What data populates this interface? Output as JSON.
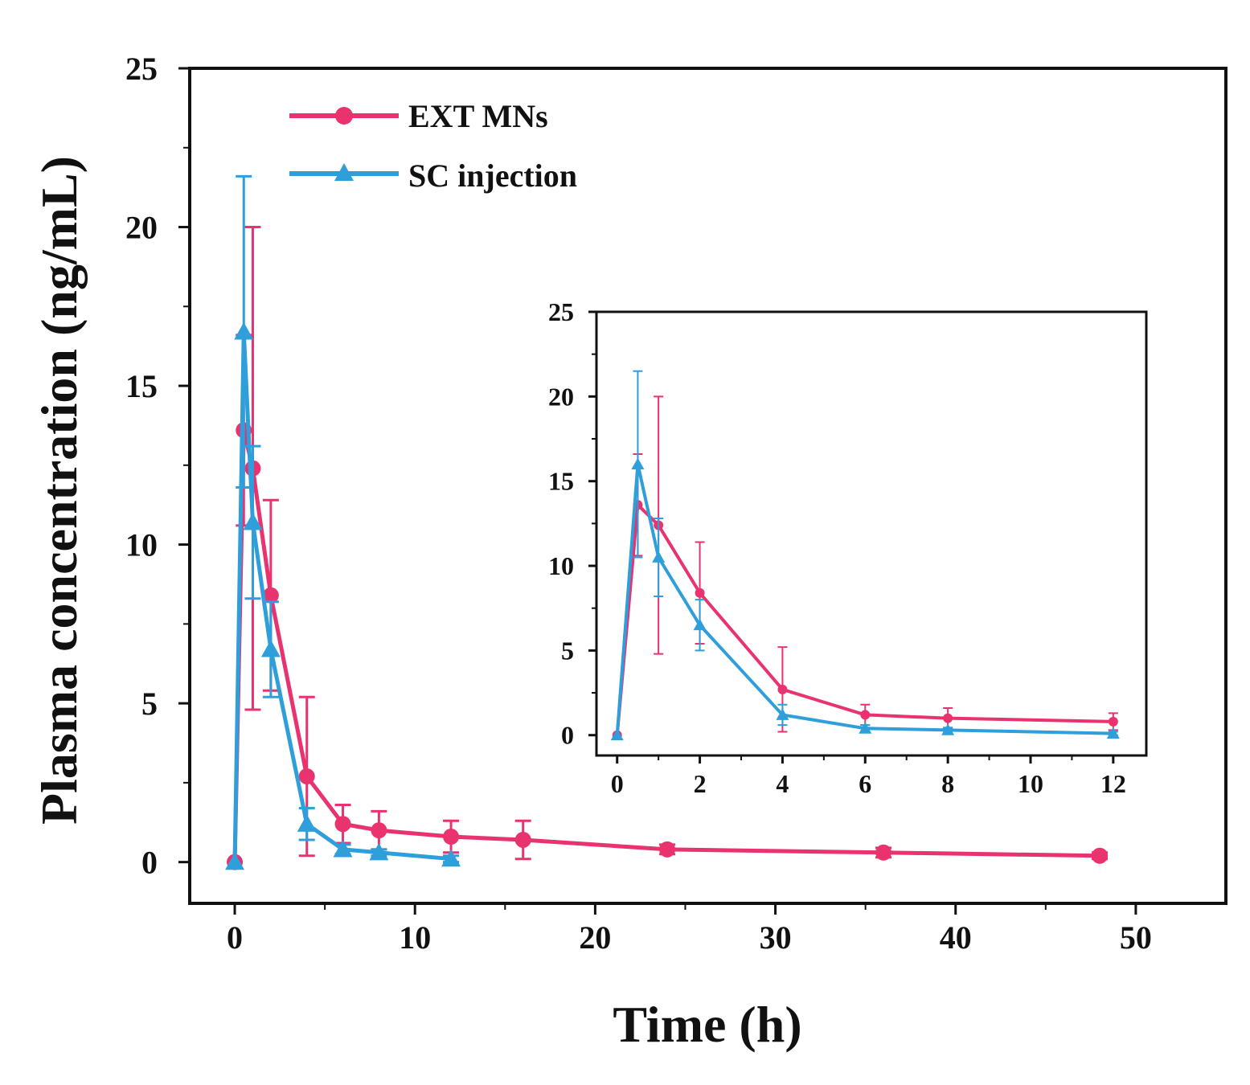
{
  "colors": {
    "ext_mns": "#e8336f",
    "sc_injection": "#2f9fdc",
    "axis": "#111111"
  },
  "chart_data": [
    {
      "id": "main",
      "type": "line",
      "title": "",
      "xlabel": "Time (h)",
      "ylabel": "Plasma concentration (ng/mL)",
      "xlim": [
        -2.5,
        55
      ],
      "ylim": [
        -1.3,
        25
      ],
      "xticks": [
        0,
        10,
        20,
        30,
        40,
        50
      ],
      "yticks": [
        0,
        5,
        10,
        15,
        20,
        25
      ],
      "xtick_labels": [
        "0",
        "10",
        "20",
        "30",
        "40",
        "50"
      ],
      "ytick_labels": [
        "0",
        "5",
        "10",
        "15",
        "20",
        "25"
      ],
      "grid": false,
      "legend_position": "top-left",
      "series": [
        {
          "name": "EXT MNs",
          "marker": "circle",
          "color": "#e8336f",
          "x": [
            0,
            0.5,
            1,
            2,
            4,
            6,
            8,
            12,
            16,
            24,
            36,
            48
          ],
          "y": [
            0,
            13.6,
            12.4,
            8.4,
            2.7,
            1.2,
            1.0,
            0.8,
            0.7,
            0.4,
            0.3,
            0.2
          ],
          "err": [
            0,
            3.0,
            7.6,
            3.0,
            2.5,
            0.6,
            0.6,
            0.5,
            0.6,
            0.15,
            0.15,
            0.1
          ]
        },
        {
          "name": "SC injection",
          "marker": "triangle",
          "color": "#2f9fdc",
          "x": [
            0,
            0.5,
            1,
            2,
            4,
            6,
            8,
            12
          ],
          "y": [
            0,
            16.7,
            10.7,
            6.7,
            1.2,
            0.4,
            0.3,
            0.1
          ],
          "err": [
            0,
            4.9,
            2.4,
            1.5,
            0.5,
            0.15,
            0.1,
            0.1
          ]
        }
      ]
    },
    {
      "id": "inset",
      "type": "line",
      "title": "",
      "xlabel": "",
      "ylabel": "",
      "xlim": [
        -0.5,
        12.8
      ],
      "ylim": [
        -1.2,
        25
      ],
      "xticks": [
        0,
        2,
        4,
        6,
        8,
        10,
        12
      ],
      "yticks": [
        0,
        5,
        10,
        15,
        20,
        25
      ],
      "xtick_labels": [
        "0",
        "2",
        "4",
        "6",
        "8",
        "10",
        "12"
      ],
      "ytick_labels": [
        "0",
        "5",
        "10",
        "15",
        "20",
        "25"
      ],
      "grid": false,
      "series": [
        {
          "name": "EXT MNs",
          "marker": "circle",
          "color": "#e8336f",
          "x": [
            0,
            0.5,
            1,
            2,
            4,
            6,
            8,
            12
          ],
          "y": [
            0,
            13.6,
            12.4,
            8.4,
            2.7,
            1.2,
            1.0,
            0.8
          ],
          "err": [
            0,
            3.0,
            7.6,
            3.0,
            2.5,
            0.6,
            0.6,
            0.5
          ]
        },
        {
          "name": "SC injection",
          "marker": "triangle",
          "color": "#2f9fdc",
          "x": [
            0,
            0.5,
            1,
            2,
            4,
            6,
            8,
            12
          ],
          "y": [
            0,
            16.0,
            10.5,
            6.5,
            1.2,
            0.4,
            0.3,
            0.1
          ],
          "err": [
            0,
            5.5,
            2.3,
            1.5,
            0.6,
            0.2,
            0.15,
            0.1
          ]
        }
      ]
    }
  ]
}
